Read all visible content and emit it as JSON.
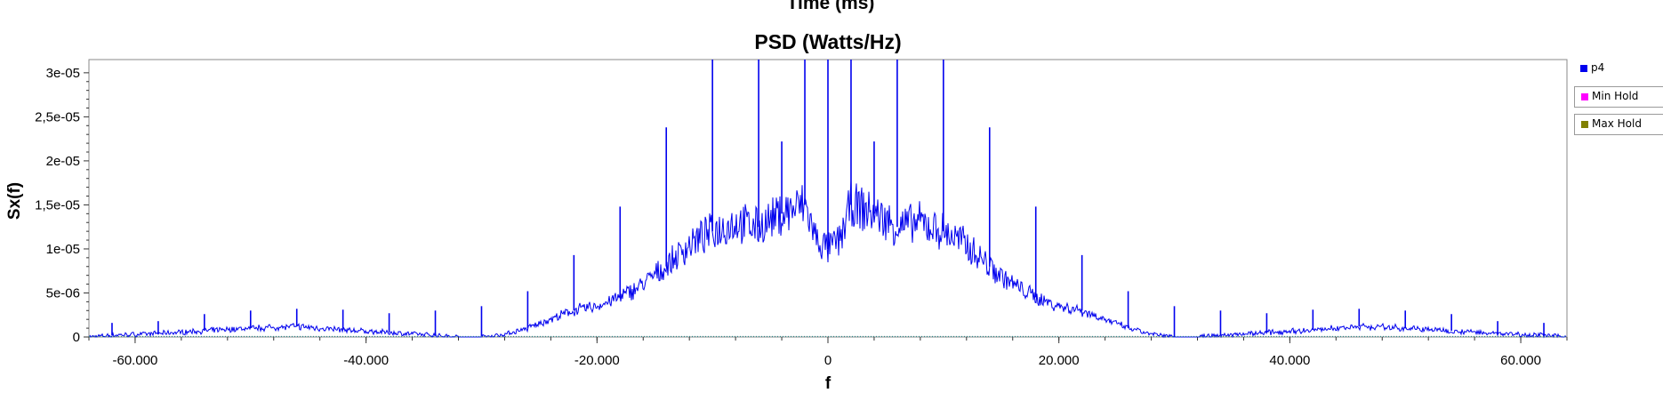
{
  "header": {
    "cut_off_title": "Time (ms)"
  },
  "chart_data": {
    "type": "line",
    "title": "PSD (Watts/Hz)",
    "xlabel": "f",
    "ylabel": "Sx(f)",
    "xlim": [
      -64000,
      64000
    ],
    "ylim": [
      0,
      3.15e-05
    ],
    "x_ticks": [
      -60000,
      -40000,
      -20000,
      0,
      20000,
      40000,
      60000
    ],
    "x_tick_labels": [
      "-60.000",
      "-40.000",
      "-20.000",
      "0",
      "20.000",
      "40.000",
      "60.000"
    ],
    "y_ticks": [
      0,
      5e-06,
      1e-05,
      1.5e-05,
      2e-05,
      2.5e-05,
      3e-05
    ],
    "y_tick_labels": [
      "0",
      "5e-06",
      "1e-05",
      "1,5e-05",
      "2e-05",
      "2,5e-05",
      "3e-05"
    ],
    "grid": false,
    "legend_position": "right",
    "series": [
      {
        "name": "p4",
        "color": "#0000ee",
        "envelope": {
          "x": [
            -64000,
            -62000,
            -58000,
            -54000,
            -50000,
            -46000,
            -42000,
            -38000,
            -34000,
            -32000,
            -30000,
            -28000,
            -26000,
            -24000,
            -22000,
            -20000,
            -18000,
            -16000,
            -14000,
            -12000,
            -10000,
            -8000,
            -6000,
            -4000,
            -2000,
            -1000,
            0,
            1000,
            2000,
            4000,
            6000,
            8000,
            10000,
            12000,
            14000,
            16000,
            18000,
            20000,
            22000,
            24000,
            26000,
            28000,
            30000,
            32000,
            34000,
            38000,
            42000,
            46000,
            50000,
            54000,
            58000,
            62000,
            64000
          ],
          "y": [
            0,
            2e-07,
            4e-07,
            7e-07,
            1e-06,
            1.2e-06,
            8e-07,
            5e-07,
            2e-07,
            0,
            0,
            3e-07,
            1e-06,
            2e-06,
            3e-06,
            3.5e-06,
            4.5e-06,
            6e-06,
            8e-06,
            1.05e-05,
            1.2e-05,
            1.3e-05,
            1.25e-05,
            1.4e-05,
            1.5e-05,
            1.1e-05,
            1e-05,
            1.1e-05,
            1.5e-05,
            1.4e-05,
            1.25e-05,
            1.3e-05,
            1.2e-05,
            1.05e-05,
            8e-06,
            6e-06,
            4.5e-06,
            3.5e-06,
            3e-06,
            2e-06,
            1e-06,
            3e-07,
            0,
            0,
            2e-07,
            5e-07,
            8e-07,
            1.2e-06,
            1e-06,
            7e-07,
            4e-07,
            2e-07,
            0
          ]
        },
        "peaks": [
          {
            "x": -62000,
            "y": 1.6e-06
          },
          {
            "x": -58000,
            "y": 1.8e-06
          },
          {
            "x": -54000,
            "y": 2.6e-06
          },
          {
            "x": -50000,
            "y": 3e-06
          },
          {
            "x": -46000,
            "y": 3.2e-06
          },
          {
            "x": -42000,
            "y": 3.1e-06
          },
          {
            "x": -38000,
            "y": 2.7e-06
          },
          {
            "x": -34000,
            "y": 3e-06
          },
          {
            "x": -30000,
            "y": 3.5e-06
          },
          {
            "x": -26000,
            "y": 5.2e-06
          },
          {
            "x": -22000,
            "y": 9.3e-06
          },
          {
            "x": -18000,
            "y": 1.48e-05
          },
          {
            "x": -14000,
            "y": 2.38e-05
          },
          {
            "x": -10000,
            "y": 3.15e-05
          },
          {
            "x": -6000,
            "y": 3.15e-05
          },
          {
            "x": -4000,
            "y": 2.22e-05
          },
          {
            "x": -2000,
            "y": 3.15e-05
          },
          {
            "x": 0,
            "y": 3.15e-05
          },
          {
            "x": 2000,
            "y": 3.15e-05
          },
          {
            "x": 4000,
            "y": 2.22e-05
          },
          {
            "x": 6000,
            "y": 3.15e-05
          },
          {
            "x": 10000,
            "y": 3.15e-05
          },
          {
            "x": 14000,
            "y": 2.38e-05
          },
          {
            "x": 18000,
            "y": 1.48e-05
          },
          {
            "x": 22000,
            "y": 9.3e-06
          },
          {
            "x": 26000,
            "y": 5.2e-06
          },
          {
            "x": 30000,
            "y": 3.5e-06
          },
          {
            "x": 34000,
            "y": 3e-06
          },
          {
            "x": 38000,
            "y": 2.7e-06
          },
          {
            "x": 42000,
            "y": 3.1e-06
          },
          {
            "x": 46000,
            "y": 3.2e-06
          },
          {
            "x": 50000,
            "y": 3e-06
          },
          {
            "x": 54000,
            "y": 2.6e-06
          },
          {
            "x": 58000,
            "y": 1.8e-06
          },
          {
            "x": 62000,
            "y": 1.6e-06
          }
        ]
      },
      {
        "name": "Min Hold",
        "color": "#ff00ff"
      },
      {
        "name": "Max Hold",
        "color": "#808000"
      }
    ],
    "baseline_color": "#2e8b8b"
  }
}
